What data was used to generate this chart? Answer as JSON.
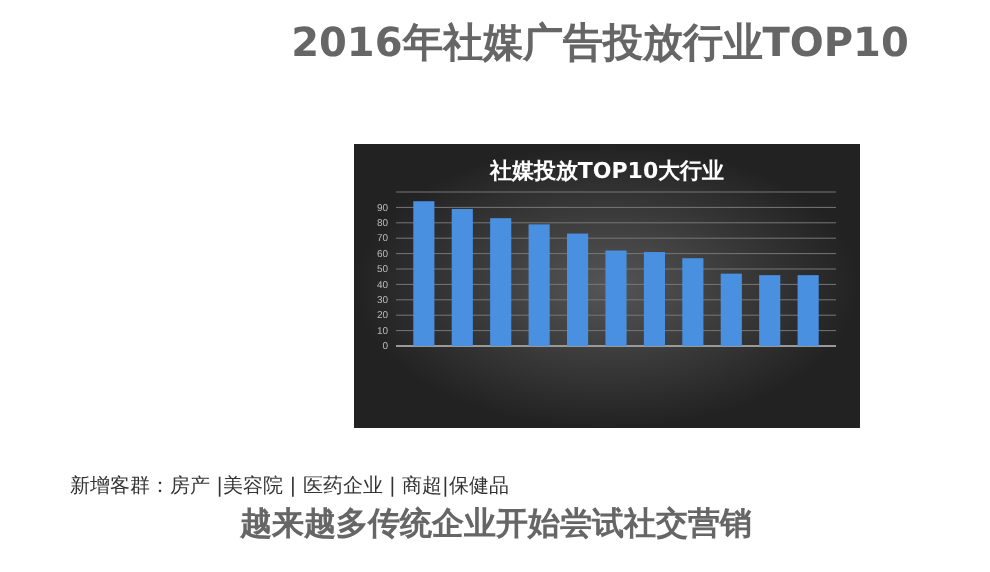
{
  "chart_data": {
    "type": "bar",
    "title": "2016年社媒广告投放行业TOP10",
    "subtitle": "社媒投放TOP10大行业",
    "categories": [
      null,
      null,
      null,
      null,
      null,
      null,
      null,
      null,
      null,
      null,
      null
    ],
    "values": [
      94,
      89,
      83,
      79,
      73,
      62,
      61,
      57,
      47,
      46,
      46
    ],
    "color": "#4a90e0",
    "ylim": [
      0,
      100
    ],
    "yticks": [
      0,
      10,
      20,
      30,
      40,
      50,
      60,
      70,
      80,
      90,
      {
        "value": 100,
        "label": null
      }
    ],
    "grid": "y",
    "annotations": [
      "新增客群：房产 |美容院 | 医药企业 | 商超|保健品",
      "越来越多传统企业开始尝试社交营销"
    ]
  }
}
